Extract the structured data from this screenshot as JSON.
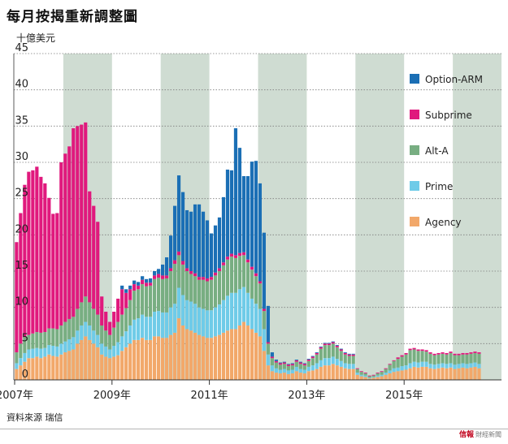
{
  "title": "每月按揭重新調整圖",
  "unit": "十億美元",
  "source": "資料來源 瑞信",
  "logo": {
    "main": "信報",
    "sub": "財經新聞"
  },
  "chart_data": {
    "type": "bar",
    "stacked": true,
    "x_tick_labels": [
      "2007年",
      "2009年",
      "2011年",
      "2013年",
      "2015年"
    ],
    "y_ticks": [
      0,
      5,
      10,
      15,
      20,
      25,
      30,
      35,
      40,
      45
    ],
    "ylim": [
      0,
      45
    ],
    "grid": "horizontal dotted",
    "legend_position": "right",
    "shaded_years": [
      2008,
      2010,
      2012,
      2014,
      2016
    ],
    "start": "2007-01",
    "series": [
      {
        "name": "Agency",
        "color": "#f2a86a",
        "values": [
          1.5,
          2.0,
          2.5,
          3.0,
          3.0,
          3.2,
          3.0,
          3.2,
          3.5,
          3.3,
          3.2,
          3.5,
          3.8,
          4.0,
          4.2,
          5.0,
          5.5,
          6.0,
          5.5,
          5.0,
          4.5,
          3.5,
          3.2,
          3.0,
          3.2,
          3.4,
          4.0,
          4.5,
          5.0,
          5.5,
          5.5,
          5.8,
          5.5,
          5.5,
          6.0,
          6.0,
          5.8,
          5.8,
          6.2,
          6.5,
          8.5,
          7.5,
          7.0,
          6.8,
          6.5,
          6.2,
          6.0,
          5.8,
          5.8,
          6.0,
          6.2,
          6.5,
          6.8,
          7.0,
          7.0,
          7.5,
          8.0,
          7.5,
          7.0,
          6.5,
          6.0,
          4.0,
          2.0,
          1.2,
          1.0,
          0.9,
          1.0,
          0.8,
          0.9,
          1.2,
          1.0,
          0.9,
          1.2,
          1.3,
          1.5,
          1.8,
          2.0,
          2.0,
          2.2,
          2.0,
          1.8,
          1.6,
          1.5,
          1.5,
          0.7,
          0.5,
          0.4,
          0.2,
          0.3,
          0.4,
          0.5,
          0.7,
          0.9,
          1.1,
          1.2,
          1.3,
          1.4,
          1.6,
          1.8,
          1.7,
          1.8,
          1.8,
          1.6,
          1.5,
          1.6,
          1.7,
          1.6,
          1.7,
          1.5,
          1.6,
          1.7,
          1.6,
          1.7,
          1.8,
          1.6
        ]
      },
      {
        "name": "Prime",
        "color": "#6fcbe8",
        "values": [
          0.8,
          1.0,
          1.2,
          1.2,
          1.3,
          1.2,
          1.3,
          1.2,
          1.3,
          1.4,
          1.4,
          1.5,
          1.5,
          1.6,
          1.7,
          1.8,
          2.0,
          2.0,
          2.0,
          1.8,
          1.7,
          1.5,
          1.4,
          1.2,
          1.5,
          1.8,
          2.0,
          2.2,
          2.5,
          2.8,
          3.0,
          3.2,
          3.2,
          3.2,
          3.4,
          3.5,
          3.5,
          3.5,
          3.8,
          4.0,
          4.2,
          4.2,
          4.0,
          4.0,
          4.0,
          3.8,
          3.8,
          3.8,
          3.8,
          4.0,
          4.2,
          4.5,
          4.8,
          5.0,
          5.0,
          5.0,
          4.8,
          4.5,
          4.2,
          4.0,
          3.8,
          3.0,
          1.5,
          0.8,
          0.6,
          0.5,
          0.5,
          0.5,
          0.5,
          0.6,
          0.5,
          0.5,
          0.6,
          0.7,
          0.8,
          0.9,
          1.0,
          1.0,
          1.0,
          0.9,
          0.8,
          0.7,
          0.7,
          0.7,
          0.3,
          0.2,
          0.2,
          0.1,
          0.1,
          0.2,
          0.2,
          0.3,
          0.4,
          0.5,
          0.5,
          0.6,
          0.6,
          0.7,
          0.7,
          0.7,
          0.7,
          0.7,
          0.6,
          0.6,
          0.6,
          0.6,
          0.6,
          0.6,
          0.6,
          0.6,
          0.6,
          0.6,
          0.6,
          0.6,
          0.6
        ]
      },
      {
        "name": "Alt-A",
        "color": "#78ae82",
        "values": [
          1.5,
          2.0,
          2.2,
          2.0,
          2.1,
          2.2,
          2.2,
          2.2,
          2.3,
          2.4,
          2.4,
          2.5,
          2.7,
          2.8,
          2.8,
          3.0,
          3.2,
          3.5,
          3.2,
          3.0,
          2.8,
          2.5,
          2.2,
          2.0,
          2.5,
          2.8,
          3.0,
          3.2,
          3.5,
          4.0,
          4.0,
          4.2,
          4.2,
          4.3,
          4.5,
          4.6,
          4.6,
          4.7,
          5.0,
          5.5,
          4.5,
          4.2,
          4.0,
          3.8,
          3.8,
          3.8,
          4.0,
          4.0,
          4.2,
          4.4,
          4.6,
          4.8,
          5.0,
          5.0,
          4.8,
          4.6,
          4.4,
          4.2,
          4.0,
          3.8,
          3.5,
          2.5,
          1.5,
          1.0,
          0.8,
          0.7,
          0.7,
          0.6,
          0.6,
          0.7,
          0.7,
          0.6,
          0.8,
          1.0,
          1.2,
          1.6,
          1.8,
          1.8,
          1.8,
          1.6,
          1.4,
          1.2,
          1.1,
          1.1,
          0.5,
          0.4,
          0.3,
          0.2,
          0.2,
          0.3,
          0.4,
          0.5,
          0.8,
          1.0,
          1.2,
          1.3,
          1.5,
          1.8,
          1.7,
          1.6,
          1.5,
          1.4,
          1.4,
          1.3,
          1.3,
          1.3,
          1.3,
          1.4,
          1.3,
          1.2,
          1.2,
          1.3,
          1.3,
          1.3,
          1.4
        ]
      },
      {
        "name": "Subprime",
        "color": "#e0197d",
        "values": [
          15.2,
          18.0,
          21.0,
          22.5,
          22.5,
          22.8,
          21.5,
          20.5,
          18.0,
          15.8,
          16.0,
          22.5,
          23.2,
          23.8,
          26.0,
          25.2,
          24.5,
          24.0,
          15.3,
          14.2,
          12.8,
          4.0,
          2.6,
          1.8,
          2.2,
          3.2,
          3.5,
          2.1,
          1.5,
          0.9,
          0.5,
          0.6,
          0.5,
          0.4,
          0.5,
          0.5,
          0.5,
          0.4,
          0.4,
          0.5,
          0.5,
          0.5,
          0.4,
          0.4,
          0.4,
          0.4,
          0.4,
          0.4,
          0.4,
          0.4,
          0.4,
          0.4,
          0.4,
          0.4,
          0.4,
          0.4,
          0.4,
          0.4,
          0.4,
          0.4,
          0.3,
          0.3,
          0.2,
          0.2,
          0.2,
          0.2,
          0.2,
          0.2,
          0.2,
          0.2,
          0.2,
          0.2,
          0.2,
          0.2,
          0.2,
          0.2,
          0.2,
          0.2,
          0.2,
          0.2,
          0.2,
          0.2,
          0.2,
          0.2,
          0.1,
          0.1,
          0.1,
          0.1,
          0.1,
          0.1,
          0.1,
          0.1,
          0.1,
          0.1,
          0.2,
          0.2,
          0.2,
          0.2,
          0.2,
          0.2,
          0.2,
          0.2,
          0.2,
          0.2,
          0.2,
          0.2,
          0.2,
          0.2,
          0.2,
          0.2,
          0.2,
          0.2,
          0.2,
          0.2,
          0.2
        ]
      },
      {
        "name": "Option-ARM",
        "color": "#1b6fb5",
        "values": [
          0,
          0,
          0,
          0,
          0,
          0,
          0,
          0,
          0,
          0,
          0,
          0,
          0,
          0,
          0,
          0,
          0,
          0,
          0,
          0,
          0,
          0,
          0,
          0,
          0,
          0,
          0.5,
          0.5,
          0.5,
          0.5,
          0.5,
          0.5,
          0.5,
          0.6,
          0.6,
          0.7,
          1.5,
          2.5,
          4.5,
          7.5,
          10.5,
          9.5,
          8.0,
          8.2,
          9.5,
          10.0,
          9.0,
          8.0,
          6.0,
          6.5,
          7.0,
          9.0,
          12.0,
          11.5,
          17.5,
          14.5,
          10.5,
          11.5,
          14.5,
          15.5,
          13.5,
          10.5,
          5.0,
          0.6,
          0.2,
          0.1,
          0.1,
          0.1,
          0.1,
          0.1,
          0.1,
          0.1,
          0.1,
          0.1,
          0.1,
          0.1,
          0.1,
          0.1,
          0.1,
          0.1,
          0.1,
          0.1,
          0.1,
          0.1,
          0,
          0,
          0,
          0,
          0,
          0,
          0,
          0,
          0,
          0,
          0,
          0,
          0,
          0,
          0,
          0,
          0,
          0,
          0,
          0,
          0,
          0,
          0,
          0,
          0,
          0,
          0,
          0,
          0,
          0,
          0
        ]
      }
    ]
  }
}
